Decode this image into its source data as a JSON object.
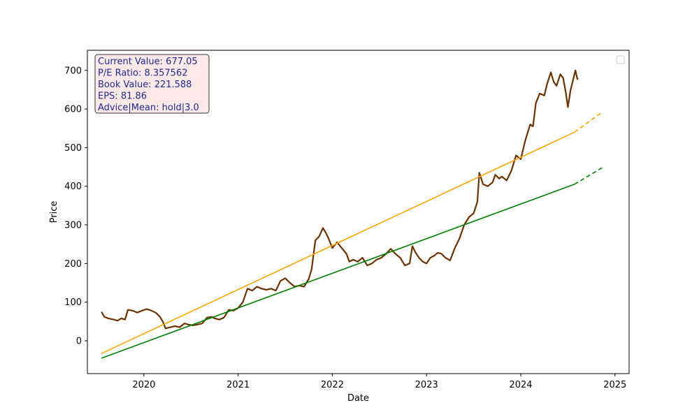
{
  "chart_data": {
    "type": "line",
    "xlabel": "Date",
    "ylabel": "Price",
    "xlim": [
      2019.4,
      2025.15
    ],
    "ylim": [
      -85,
      752
    ],
    "x_ticks": [
      {
        "value": 2020,
        "label": "2020"
      },
      {
        "value": 2021,
        "label": "2021"
      },
      {
        "value": 2022,
        "label": "2022"
      },
      {
        "value": 2023,
        "label": "2023"
      },
      {
        "value": 2024,
        "label": "2024"
      },
      {
        "value": 2025,
        "label": "2025"
      }
    ],
    "y_ticks": [
      {
        "value": 0,
        "label": "0"
      },
      {
        "value": 100,
        "label": "100"
      },
      {
        "value": 200,
        "label": "200"
      },
      {
        "value": 300,
        "label": "300"
      },
      {
        "value": 400,
        "label": "400"
      },
      {
        "value": 500,
        "label": "500"
      },
      {
        "value": 600,
        "label": "600"
      },
      {
        "value": 700,
        "label": "700"
      }
    ],
    "info_box": {
      "lines": [
        "Current Value: 677.05",
        "P/E Ratio: 8.357562",
        "Book Value: 221.588",
        "EPS: 81.86",
        "Advice|Mean: hold|3.0"
      ],
      "text_color": "#1c2a8c",
      "bg_color": "#fde8e8",
      "border_color": "#333333"
    },
    "legend": {
      "location": "top-right",
      "entries": []
    },
    "series": [
      {
        "name": "price",
        "color": "#6b3200",
        "style": "solid",
        "points": [
          [
            2019.55,
            75
          ],
          [
            2019.58,
            62
          ],
          [
            2019.62,
            58
          ],
          [
            2019.68,
            55
          ],
          [
            2019.72,
            52
          ],
          [
            2019.76,
            58
          ],
          [
            2019.8,
            55
          ],
          [
            2019.83,
            80
          ],
          [
            2019.88,
            78
          ],
          [
            2019.93,
            73
          ],
          [
            2019.98,
            78
          ],
          [
            2020.03,
            82
          ],
          [
            2020.08,
            78
          ],
          [
            2020.13,
            72
          ],
          [
            2020.17,
            62
          ],
          [
            2020.2,
            50
          ],
          [
            2020.23,
            32
          ],
          [
            2020.28,
            35
          ],
          [
            2020.33,
            38
          ],
          [
            2020.38,
            35
          ],
          [
            2020.43,
            45
          ],
          [
            2020.47,
            42
          ],
          [
            2020.52,
            40
          ],
          [
            2020.57,
            42
          ],
          [
            2020.62,
            45
          ],
          [
            2020.67,
            60
          ],
          [
            2020.72,
            62
          ],
          [
            2020.75,
            58
          ],
          [
            2020.8,
            55
          ],
          [
            2020.85,
            60
          ],
          [
            2020.9,
            80
          ],
          [
            2020.95,
            78
          ],
          [
            2021.0,
            85
          ],
          [
            2021.05,
            100
          ],
          [
            2021.1,
            135
          ],
          [
            2021.15,
            130
          ],
          [
            2021.2,
            140
          ],
          [
            2021.25,
            135
          ],
          [
            2021.3,
            132
          ],
          [
            2021.35,
            135
          ],
          [
            2021.4,
            130
          ],
          [
            2021.45,
            155
          ],
          [
            2021.5,
            162
          ],
          [
            2021.55,
            150
          ],
          [
            2021.6,
            140
          ],
          [
            2021.65,
            143
          ],
          [
            2021.7,
            140
          ],
          [
            2021.75,
            160
          ],
          [
            2021.78,
            185
          ],
          [
            2021.82,
            260
          ],
          [
            2021.86,
            270
          ],
          [
            2021.9,
            292
          ],
          [
            2021.93,
            280
          ],
          [
            2021.96,
            265
          ],
          [
            2022.0,
            240
          ],
          [
            2022.05,
            255
          ],
          [
            2022.1,
            240
          ],
          [
            2022.15,
            225
          ],
          [
            2022.18,
            205
          ],
          [
            2022.22,
            210
          ],
          [
            2022.27,
            205
          ],
          [
            2022.32,
            215
          ],
          [
            2022.37,
            195
          ],
          [
            2022.42,
            200
          ],
          [
            2022.47,
            210
          ],
          [
            2022.52,
            215
          ],
          [
            2022.57,
            225
          ],
          [
            2022.62,
            238
          ],
          [
            2022.67,
            225
          ],
          [
            2022.72,
            215
          ],
          [
            2022.77,
            195
          ],
          [
            2022.82,
            200
          ],
          [
            2022.85,
            245
          ],
          [
            2022.88,
            230
          ],
          [
            2022.92,
            215
          ],
          [
            2022.96,
            205
          ],
          [
            2023.0,
            200
          ],
          [
            2023.04,
            215
          ],
          [
            2023.08,
            220
          ],
          [
            2023.12,
            228
          ],
          [
            2023.16,
            225
          ],
          [
            2023.2,
            215
          ],
          [
            2023.25,
            208
          ],
          [
            2023.3,
            240
          ],
          [
            2023.35,
            265
          ],
          [
            2023.4,
            300
          ],
          [
            2023.45,
            320
          ],
          [
            2023.5,
            330
          ],
          [
            2023.54,
            360
          ],
          [
            2023.56,
            435
          ],
          [
            2023.58,
            420
          ],
          [
            2023.6,
            405
          ],
          [
            2023.65,
            400
          ],
          [
            2023.7,
            410
          ],
          [
            2023.73,
            430
          ],
          [
            2023.77,
            420
          ],
          [
            2023.8,
            425
          ],
          [
            2023.85,
            415
          ],
          [
            2023.9,
            440
          ],
          [
            2023.95,
            480
          ],
          [
            2024.0,
            470
          ],
          [
            2024.05,
            520
          ],
          [
            2024.1,
            560
          ],
          [
            2024.13,
            555
          ],
          [
            2024.16,
            615
          ],
          [
            2024.2,
            640
          ],
          [
            2024.25,
            635
          ],
          [
            2024.28,
            665
          ],
          [
            2024.32,
            695
          ],
          [
            2024.35,
            670
          ],
          [
            2024.38,
            660
          ],
          [
            2024.42,
            690
          ],
          [
            2024.45,
            680
          ],
          [
            2024.48,
            640
          ],
          [
            2024.5,
            605
          ],
          [
            2024.53,
            650
          ],
          [
            2024.56,
            680
          ],
          [
            2024.58,
            700
          ],
          [
            2024.6,
            678
          ],
          [
            2024.61,
            677
          ]
        ]
      },
      {
        "name": "trend-upper",
        "color": "#ffa500",
        "style": "solid",
        "points": [
          [
            2019.55,
            -33
          ],
          [
            2024.57,
            540
          ]
        ]
      },
      {
        "name": "trend-upper-forecast",
        "color": "#ffa500",
        "style": "dashed",
        "points": [
          [
            2024.57,
            540
          ],
          [
            2024.87,
            593
          ]
        ]
      },
      {
        "name": "trend-lower",
        "color": "#008000",
        "style": "solid",
        "points": [
          [
            2019.55,
            -45
          ],
          [
            2024.57,
            405
          ]
        ]
      },
      {
        "name": "trend-lower-forecast",
        "color": "#008000",
        "style": "dashed",
        "points": [
          [
            2024.57,
            405
          ],
          [
            2024.87,
            449
          ]
        ]
      }
    ]
  }
}
